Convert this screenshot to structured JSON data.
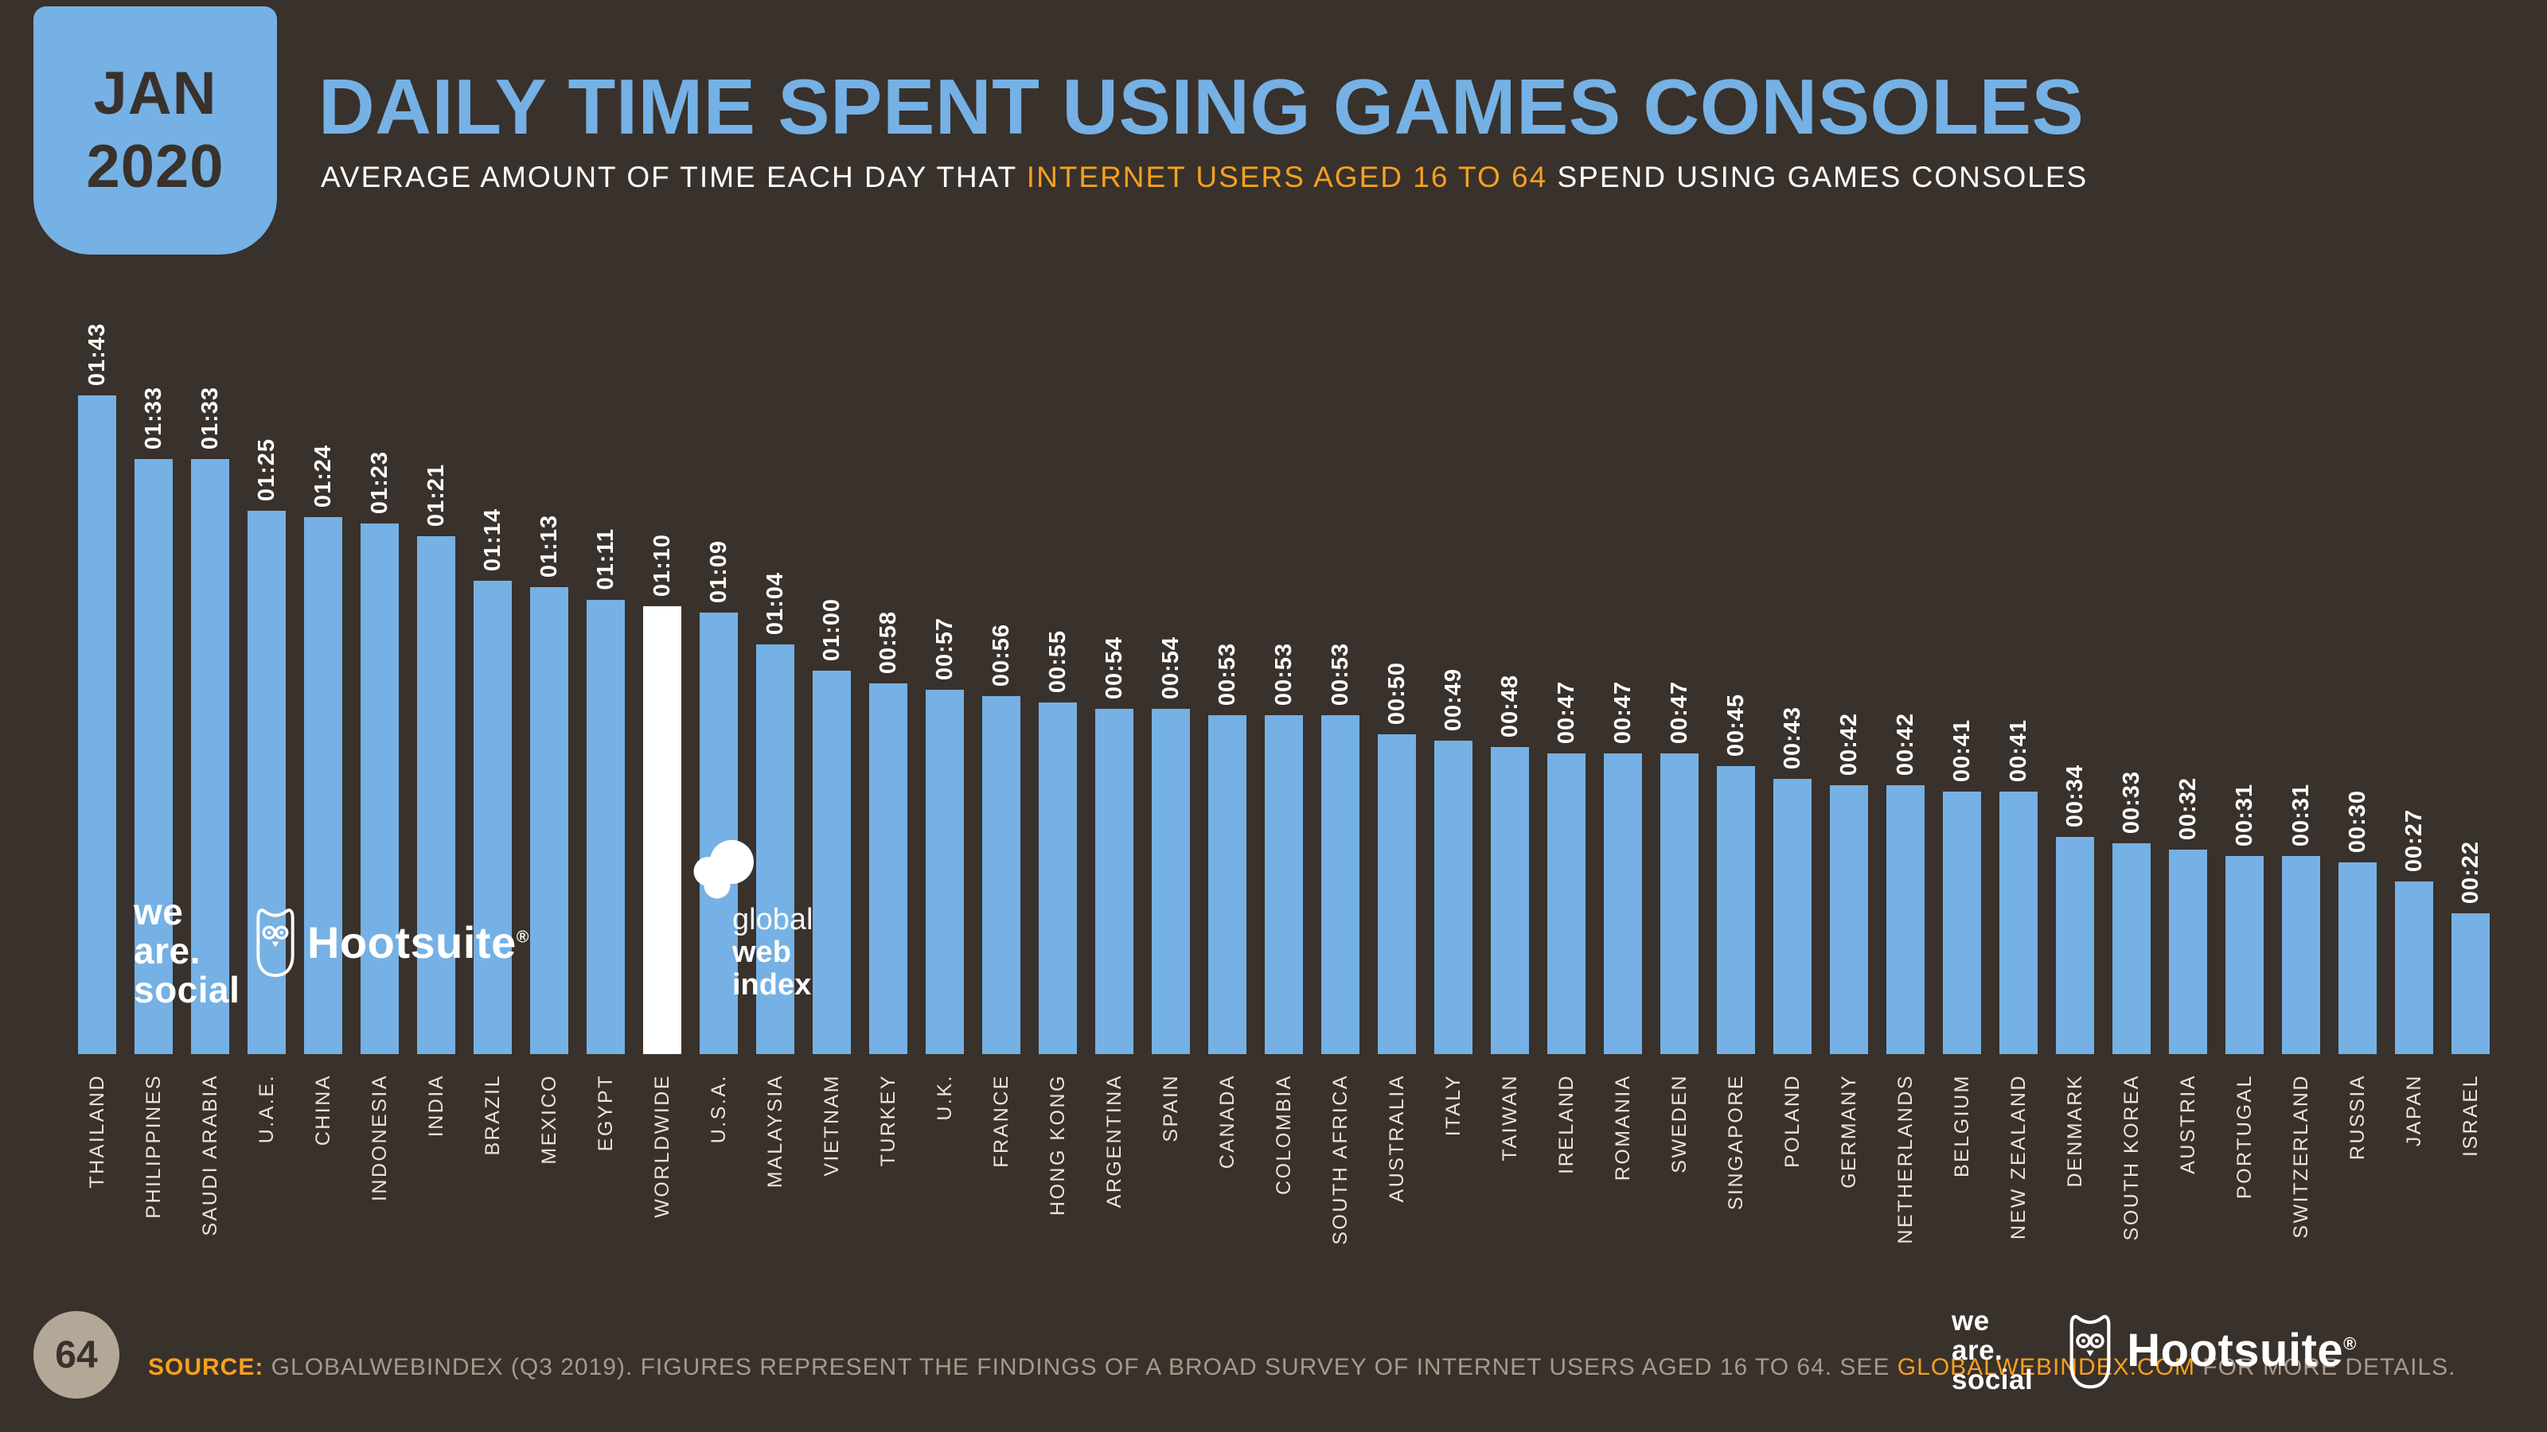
{
  "colors": {
    "background": "#39312B",
    "accent_blue": "#75B1E4",
    "orange": "#F5A120",
    "cream": "#E9E4D9",
    "white": "#FFFFFF",
    "dark_text": "#39312B",
    "footer_text": "#A59A8C",
    "page_circle": "#B3A798"
  },
  "header": {
    "date_line1": "JAN",
    "date_line2": "2020",
    "title": "DAILY TIME SPENT USING GAMES CONSOLES",
    "subtitle_part1": "AVERAGE AMOUNT OF TIME EACH DAY THAT ",
    "subtitle_highlight": "INTERNET USERS AGED 16 TO 64",
    "subtitle_part2": " SPEND USING GAMES CONSOLES"
  },
  "chart_data": {
    "type": "bar",
    "title": "Daily time spent using games consoles (hh:mm)",
    "value_format": "hh:mm",
    "xlabel": "",
    "ylabel": "",
    "grid": false,
    "legend": "none",
    "ylim_minutes": [
      0,
      103
    ],
    "bar_color": "#75B1E4",
    "highlight_color": "#FFFFFF",
    "highlight_category": "WORLDWIDE",
    "highlight_index": 10,
    "categories": [
      "THAILAND",
      "PHILIPPINES",
      "SAUDI ARABIA",
      "U.A.E.",
      "CHINA",
      "INDONESIA",
      "INDIA",
      "BRAZIL",
      "MEXICO",
      "EGYPT",
      "WORLDWIDE",
      "U.S.A.",
      "MALAYSIA",
      "VIETNAM",
      "TURKEY",
      "U.K.",
      "FRANCE",
      "HONG KONG",
      "ARGENTINA",
      "SPAIN",
      "CANADA",
      "COLOMBIA",
      "SOUTH AFRICA",
      "AUSTRALIA",
      "ITALY",
      "TAIWAN",
      "IRELAND",
      "ROMANIA",
      "SWEDEN",
      "SINGAPORE",
      "POLAND",
      "GERMANY",
      "NETHERLANDS",
      "BELGIUM",
      "NEW ZEALAND",
      "DENMARK",
      "SOUTH KOREA",
      "AUSTRIA",
      "PORTUGAL",
      "SWITZERLAND",
      "RUSSIA",
      "JAPAN",
      "ISRAEL"
    ],
    "values": [
      "01:43",
      "01:33",
      "01:33",
      "01:25",
      "01:24",
      "01:23",
      "01:21",
      "01:14",
      "01:13",
      "01:11",
      "01:10",
      "01:09",
      "01:04",
      "01:00",
      "00:58",
      "00:57",
      "00:56",
      "00:55",
      "00:54",
      "00:54",
      "00:53",
      "00:53",
      "00:53",
      "00:50",
      "00:49",
      "00:48",
      "00:47",
      "00:47",
      "00:47",
      "00:45",
      "00:43",
      "00:42",
      "00:42",
      "00:41",
      "00:41",
      "00:34",
      "00:33",
      "00:32",
      "00:31",
      "00:31",
      "00:30",
      "00:27",
      "00:22"
    ]
  },
  "watermarks": {
    "weare_lines": [
      "we",
      "are.",
      "social"
    ],
    "hootsuite_label": "Hootsuite",
    "hootsuite_reg": "®",
    "gwi_line1": "global",
    "gwi_line2": "web",
    "gwi_line3": "index"
  },
  "footer": {
    "page_number": "64",
    "source_label": "SOURCE:",
    "source_text": " GLOBALWEBINDEX (Q3 2019). FIGURES REPRESENT THE FINDINGS OF A BROAD SURVEY OF INTERNET USERS AGED 16 TO 64. SEE ",
    "source_link": "GLOBALWEBINDEX.COM",
    "source_suffix": " FOR MORE DETAILS.",
    "weare_lines": [
      "we",
      "are.",
      "social"
    ],
    "hootsuite_label": "Hootsuite",
    "hootsuite_reg": "®"
  }
}
